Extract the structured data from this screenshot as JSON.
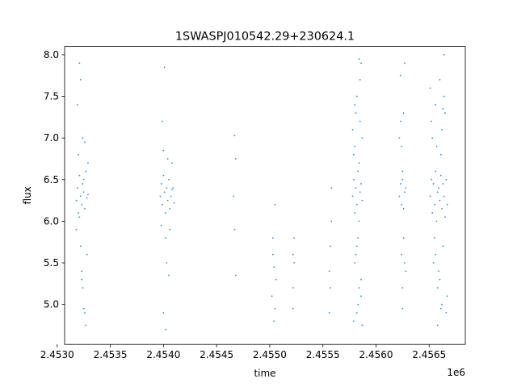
{
  "chart_data": {
    "type": "scatter",
    "title": "1SWASPJ010542.29+230624.1",
    "xlabel": "time",
    "ylabel": "flux",
    "x_offset_label": "1e6",
    "xlim": [
      2.45307,
      2.45684
    ],
    "ylim": [
      4.52,
      8.1
    ],
    "xticks": [
      2.453,
      2.4535,
      2.454,
      2.4545,
      2.455,
      2.4555,
      2.456,
      2.4565
    ],
    "xtick_labels": [
      "2.4530",
      "2.4535",
      "2.4540",
      "2.4545",
      "2.4550",
      "2.4555",
      "2.4560",
      "2.4565"
    ],
    "yticks": [
      5.0,
      5.5,
      6.0,
      6.5,
      7.0,
      7.5,
      8.0
    ],
    "ytick_labels": [
      "5.0",
      "5.5",
      "6.0",
      "6.5",
      "7.0",
      "7.5",
      "8.0"
    ],
    "grid": false,
    "marker_color": "#1f77b4",
    "series": [
      {
        "x": [
          2.45318,
          2.45319,
          2.4532,
          2.45321,
          2.45322,
          2.45323,
          2.45324,
          2.45325,
          2.45326,
          2.45327,
          2.45328,
          2.45329,
          2.45318,
          2.4532,
          2.45322,
          2.45324,
          2.45326,
          2.45328,
          2.45319,
          2.45321,
          2.45323,
          2.45325,
          2.45327,
          2.45329,
          2.45322,
          2.45324,
          2.45326,
          2.45321,
          2.45325,
          2.45323,
          2.45397,
          2.45398,
          2.45399,
          2.454,
          2.45401,
          2.45402,
          2.45403,
          2.45404,
          2.45405,
          2.45406,
          2.45407,
          2.45408,
          2.45398,
          2.454,
          2.45402,
          2.45404,
          2.45406,
          2.45408,
          2.45399,
          2.45401,
          2.45403,
          2.45405,
          2.45409,
          2.4541,
          2.454,
          2.45402,
          2.45467,
          2.45468,
          2.45466,
          2.45467,
          2.45468,
          2.45502,
          2.45503,
          2.45504,
          2.45505,
          2.45506,
          2.45503,
          2.45505,
          2.45504,
          2.45522,
          2.45523,
          2.45522,
          2.45523,
          2.45522,
          2.45556,
          2.45557,
          2.45558,
          2.45557,
          2.45556,
          2.45558,
          2.45578,
          2.45579,
          2.4558,
          2.45581,
          2.45582,
          2.45583,
          2.45584,
          2.45585,
          2.45586,
          2.45587,
          2.45578,
          2.4558,
          2.45582,
          2.45584,
          2.45586,
          2.45579,
          2.45581,
          2.45583,
          2.45585,
          2.45587,
          2.4558,
          2.45582,
          2.45584,
          2.45586,
          2.45579,
          2.45583,
          2.45585,
          2.45581,
          2.45587,
          2.45582,
          2.45584,
          2.4558,
          2.45586,
          2.45622,
          2.45623,
          2.45624,
          2.45625,
          2.45626,
          2.45627,
          2.45628,
          2.45622,
          2.45624,
          2.45626,
          2.45628,
          2.45623,
          2.45625,
          2.45627,
          2.45624,
          2.45626,
          2.45625,
          2.45623,
          2.45627,
          2.45625,
          2.45651,
          2.45652,
          2.45653,
          2.45654,
          2.45655,
          2.45656,
          2.45657,
          2.45658,
          2.45659,
          2.4566,
          2.45661,
          2.45662,
          2.45663,
          2.45664,
          2.45665,
          2.45666,
          2.45667,
          2.45652,
          2.45654,
          2.45656,
          2.45658,
          2.4566,
          2.45662,
          2.45664,
          2.45666,
          2.45653,
          2.45655,
          2.45657,
          2.45659,
          2.45661,
          2.45663,
          2.45665,
          2.45667,
          2.45651,
          2.45658,
          2.45662,
          2.4566,
          2.45664,
          2.45656,
          2.45661,
          2.45663
        ],
        "y": [
          6.25,
          6.4,
          6.1,
          6.55,
          6.3,
          6.2,
          6.45,
          6.35,
          6.15,
          6.6,
          6.28,
          6.32,
          5.9,
          6.8,
          5.7,
          7.0,
          6.95,
          5.6,
          7.4,
          7.9,
          5.3,
          4.95,
          4.75,
          6.7,
          7.7,
          5.2,
          4.9,
          6.05,
          6.5,
          5.4,
          6.3,
          6.45,
          6.2,
          6.55,
          6.35,
          6.1,
          6.4,
          6.25,
          6.5,
          6.15,
          6.3,
          6.38,
          5.95,
          6.85,
          5.8,
          6.75,
          5.9,
          6.7,
          7.2,
          7.85,
          5.5,
          5.35,
          6.4,
          6.22,
          4.9,
          4.7,
          7.03,
          6.75,
          6.3,
          5.9,
          5.35,
          5.1,
          5.6,
          4.8,
          6.2,
          5.3,
          5.8,
          4.95,
          5.45,
          5.2,
          5.5,
          4.95,
          5.8,
          5.6,
          5.4,
          5.7,
          6.4,
          5.2,
          4.9,
          6.0,
          6.3,
          6.5,
          6.1,
          6.4,
          6.2,
          6.6,
          6.0,
          6.35,
          6.45,
          6.25,
          7.1,
          5.5,
          7.5,
          5.2,
          7.9,
          4.8,
          7.3,
          5.0,
          7.7,
          4.75,
          6.9,
          5.7,
          7.95,
          5.3,
          6.8,
          5.8,
          7.2,
          5.6,
          7.0,
          4.9,
          6.7,
          7.4,
          5.1,
          6.3,
          6.45,
          6.2,
          6.5,
          6.15,
          6.35,
          6.4,
          7.0,
          5.6,
          7.3,
          5.4,
          7.75,
          5.2,
          7.9,
          6.9,
          5.8,
          4.95,
          7.2,
          5.5,
          6.6,
          6.3,
          6.5,
          6.1,
          6.45,
          6.2,
          6.6,
          6.0,
          6.35,
          6.4,
          6.25,
          6.55,
          6.15,
          6.45,
          6.3,
          6.05,
          6.5,
          6.2,
          7.2,
          5.5,
          7.4,
          5.2,
          7.7,
          5.0,
          7.5,
          4.9,
          7.0,
          5.8,
          6.9,
          5.4,
          6.8,
          5.7,
          7.3,
          5.1,
          7.6,
          4.75,
          7.1,
          5.3,
          8.0,
          5.6,
          4.95,
          7.35
        ]
      }
    ]
  }
}
